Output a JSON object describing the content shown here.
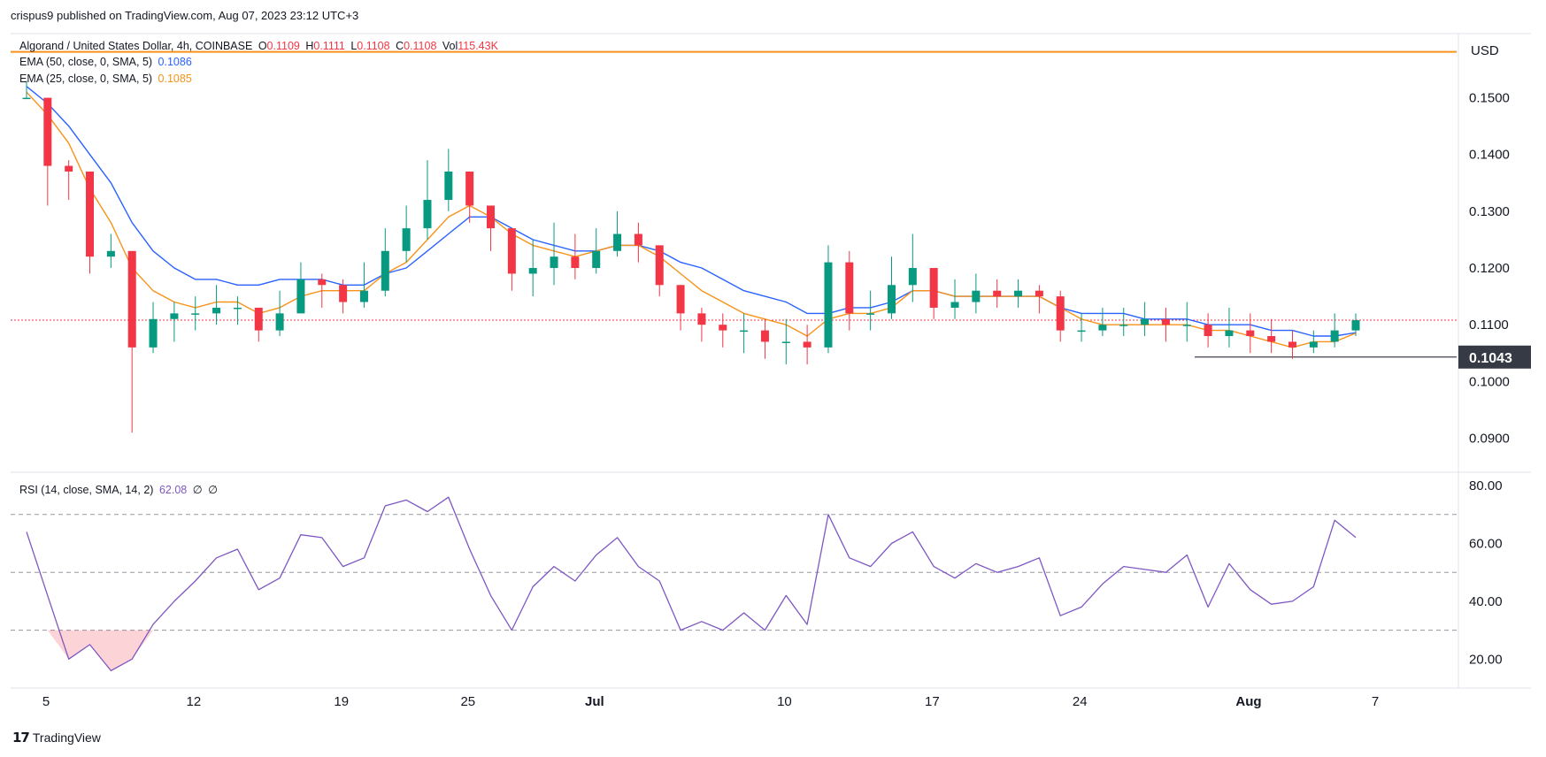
{
  "header": {
    "publisher_line": "crispus9 published on TradingView.com, Aug 07, 2023 23:12 UTC+3"
  },
  "legend": {
    "symbol": "Algorand / United States Dollar, 4h, COINBASE",
    "o_label": "O",
    "o_value": "0.1109",
    "h_label": "H",
    "h_value": "0.1111",
    "l_label": "L",
    "l_value": "0.1108",
    "c_label": "C",
    "c_value": "0.1108",
    "vol_label": "Vol",
    "vol_value": "115.43K",
    "ema50_label": "EMA (50, close, 0, SMA, 5)",
    "ema50_value": "0.1086",
    "ema25_label": "EMA (25, close, 0, SMA, 5)",
    "ema25_value": "0.1085",
    "rsi_label": "RSI (14, close, SMA, 14, 2)",
    "rsi_value": "62.08",
    "rsi_extra1": "∅",
    "rsi_extra2": "∅"
  },
  "price_axis": {
    "currency": "USD",
    "ticks": [
      "0.1500",
      "0.1400",
      "0.1300",
      "0.1200",
      "0.1100",
      "0.1000",
      "0.0900"
    ],
    "marked_price": "0.1043"
  },
  "rsi_axis": {
    "ticks": [
      "80.00",
      "60.00",
      "40.00",
      "20.00"
    ]
  },
  "time_axis": {
    "ticks": [
      "5",
      "12",
      "19",
      "25",
      "Jul",
      "10",
      "17",
      "24",
      "Aug",
      "7"
    ]
  },
  "footer": {
    "brand": "TradingView"
  },
  "colors": {
    "up": "#089981",
    "down": "#f23645",
    "ema50": "#2962ff",
    "ema25": "#f7931a",
    "rsi": "#7e57c2",
    "resistance": "#f7931a",
    "last_price": "#f23645"
  },
  "chart_data": [
    {
      "type": "candlestick",
      "title": "Algorand / United States Dollar, 4h, COINBASE",
      "xlabel": "",
      "ylabel": "USD",
      "ylim": [
        0.084,
        0.161
      ],
      "x": [
        "Jun 5",
        "Jun 6",
        "Jun 7",
        "Jun 8",
        "Jun 9",
        "Jun 10",
        "Jun 11",
        "Jun 12",
        "Jun 13",
        "Jun 14",
        "Jun 15",
        "Jun 16",
        "Jun 17",
        "Jun 18",
        "Jun 19",
        "Jun 20",
        "Jun 21",
        "Jun 22",
        "Jun 23",
        "Jun 24",
        "Jun 25",
        "Jun 26",
        "Jun 27",
        "Jun 28",
        "Jun 29",
        "Jun 30",
        "Jul 1",
        "Jul 2",
        "Jul 3",
        "Jul 4",
        "Jul 5",
        "Jul 6",
        "Jul 7",
        "Jul 8",
        "Jul 9",
        "Jul 10",
        "Jul 11",
        "Jul 12",
        "Jul 13",
        "Jul 14",
        "Jul 15",
        "Jul 16",
        "Jul 17",
        "Jul 18",
        "Jul 19",
        "Jul 20",
        "Jul 21",
        "Jul 22",
        "Jul 23",
        "Jul 24",
        "Jul 25",
        "Jul 26",
        "Jul 27",
        "Jul 28",
        "Jul 29",
        "Jul 30",
        "Jul 31",
        "Aug 1",
        "Aug 2",
        "Aug 3",
        "Aug 4",
        "Aug 5",
        "Aug 6",
        "Aug 7"
      ],
      "close": [
        0.15,
        0.138,
        0.137,
        0.122,
        0.123,
        0.106,
        0.111,
        0.112,
        0.112,
        0.113,
        0.113,
        0.109,
        0.112,
        0.118,
        0.117,
        0.114,
        0.116,
        0.123,
        0.127,
        0.132,
        0.137,
        0.131,
        0.127,
        0.119,
        0.12,
        0.122,
        0.12,
        0.123,
        0.126,
        0.124,
        0.117,
        0.112,
        0.11,
        0.109,
        0.109,
        0.107,
        0.107,
        0.106,
        0.121,
        0.112,
        0.112,
        0.117,
        0.12,
        0.113,
        0.114,
        0.116,
        0.115,
        0.116,
        0.115,
        0.109,
        0.109,
        0.11,
        0.11,
        0.111,
        0.11,
        0.11,
        0.108,
        0.109,
        0.108,
        0.107,
        0.106,
        0.107,
        0.109,
        0.1108
      ],
      "high": [
        0.153,
        0.14,
        0.139,
        0.127,
        0.126,
        0.112,
        0.114,
        0.114,
        0.115,
        0.117,
        0.115,
        0.113,
        0.116,
        0.121,
        0.119,
        0.118,
        0.121,
        0.127,
        0.131,
        0.139,
        0.141,
        0.137,
        0.131,
        0.125,
        0.125,
        0.128,
        0.126,
        0.127,
        0.13,
        0.128,
        0.124,
        0.117,
        0.113,
        0.112,
        0.112,
        0.111,
        0.111,
        0.11,
        0.124,
        0.123,
        0.116,
        0.122,
        0.126,
        0.119,
        0.118,
        0.119,
        0.118,
        0.118,
        0.117,
        0.116,
        0.112,
        0.113,
        0.113,
        0.114,
        0.113,
        0.114,
        0.112,
        0.113,
        0.112,
        0.111,
        0.109,
        0.109,
        0.112,
        0.112
      ],
      "low": [
        0.15,
        0.131,
        0.132,
        0.119,
        0.12,
        0.091,
        0.105,
        0.107,
        0.109,
        0.11,
        0.11,
        0.107,
        0.108,
        0.112,
        0.113,
        0.112,
        0.113,
        0.115,
        0.121,
        0.125,
        0.13,
        0.128,
        0.123,
        0.116,
        0.115,
        0.117,
        0.118,
        0.119,
        0.122,
        0.121,
        0.115,
        0.109,
        0.107,
        0.106,
        0.105,
        0.104,
        0.103,
        0.103,
        0.105,
        0.109,
        0.109,
        0.111,
        0.114,
        0.111,
        0.111,
        0.112,
        0.113,
        0.113,
        0.112,
        0.107,
        0.107,
        0.108,
        0.108,
        0.108,
        0.107,
        0.107,
        0.106,
        0.106,
        0.105,
        0.105,
        0.104,
        0.105,
        0.106,
        0.108
      ],
      "ema50": [
        0.152,
        0.149,
        0.145,
        0.14,
        0.135,
        0.128,
        0.123,
        0.12,
        0.118,
        0.118,
        0.117,
        0.117,
        0.118,
        0.118,
        0.118,
        0.117,
        0.117,
        0.119,
        0.12,
        0.123,
        0.126,
        0.129,
        0.129,
        0.127,
        0.125,
        0.124,
        0.123,
        0.123,
        0.124,
        0.124,
        0.123,
        0.121,
        0.12,
        0.118,
        0.116,
        0.115,
        0.114,
        0.112,
        0.112,
        0.113,
        0.113,
        0.114,
        0.116,
        0.116,
        0.115,
        0.115,
        0.115,
        0.115,
        0.115,
        0.113,
        0.112,
        0.112,
        0.112,
        0.111,
        0.111,
        0.111,
        0.11,
        0.11,
        0.11,
        0.109,
        0.109,
        0.108,
        0.108,
        0.1086
      ],
      "ema25": [
        0.151,
        0.147,
        0.142,
        0.134,
        0.128,
        0.12,
        0.116,
        0.114,
        0.113,
        0.114,
        0.114,
        0.112,
        0.113,
        0.115,
        0.116,
        0.116,
        0.116,
        0.119,
        0.121,
        0.125,
        0.129,
        0.131,
        0.129,
        0.126,
        0.124,
        0.123,
        0.122,
        0.123,
        0.124,
        0.124,
        0.122,
        0.119,
        0.116,
        0.114,
        0.112,
        0.111,
        0.11,
        0.108,
        0.111,
        0.112,
        0.112,
        0.113,
        0.116,
        0.116,
        0.115,
        0.115,
        0.115,
        0.115,
        0.115,
        0.113,
        0.111,
        0.11,
        0.11,
        0.11,
        0.11,
        0.11,
        0.109,
        0.109,
        0.108,
        0.107,
        0.106,
        0.107,
        0.107,
        0.1085
      ],
      "horizontal_lines": [
        {
          "name": "resistance",
          "value": 0.1581
        },
        {
          "name": "last-price",
          "value": 0.1108
        },
        {
          "name": "support",
          "value": 0.1043
        }
      ]
    },
    {
      "type": "line",
      "title": "RSI (14, close, SMA, 14, 2)",
      "ylim": [
        10,
        84
      ],
      "bands": [
        30,
        50,
        70
      ],
      "x": [
        "Jun 5",
        "Jun 6",
        "Jun 7",
        "Jun 8",
        "Jun 9",
        "Jun 10",
        "Jun 11",
        "Jun 12",
        "Jun 13",
        "Jun 14",
        "Jun 15",
        "Jun 16",
        "Jun 17",
        "Jun 18",
        "Jun 19",
        "Jun 20",
        "Jun 21",
        "Jun 22",
        "Jun 23",
        "Jun 24",
        "Jun 25",
        "Jun 26",
        "Jun 27",
        "Jun 28",
        "Jun 29",
        "Jun 30",
        "Jul 1",
        "Jul 2",
        "Jul 3",
        "Jul 4",
        "Jul 5",
        "Jul 6",
        "Jul 7",
        "Jul 8",
        "Jul 9",
        "Jul 10",
        "Jul 11",
        "Jul 12",
        "Jul 13",
        "Jul 14",
        "Jul 15",
        "Jul 16",
        "Jul 17",
        "Jul 18",
        "Jul 19",
        "Jul 20",
        "Jul 21",
        "Jul 22",
        "Jul 23",
        "Jul 24",
        "Jul 25",
        "Jul 26",
        "Jul 27",
        "Jul 28",
        "Jul 29",
        "Jul 30",
        "Jul 31",
        "Aug 1",
        "Aug 2",
        "Aug 3",
        "Aug 4",
        "Aug 5",
        "Aug 6",
        "Aug 7"
      ],
      "values": [
        64,
        42,
        20,
        25,
        16,
        20,
        32,
        40,
        47,
        55,
        58,
        44,
        48,
        63,
        62,
        52,
        55,
        73,
        75,
        71,
        76,
        58,
        42,
        30,
        45,
        52,
        47,
        56,
        62,
        52,
        47,
        30,
        33,
        30,
        36,
        30,
        42,
        32,
        70,
        55,
        52,
        60,
        64,
        52,
        48,
        53,
        50,
        52,
        55,
        35,
        38,
        46,
        52,
        51,
        50,
        56,
        38,
        53,
        44,
        39,
        40,
        45,
        68,
        62.08
      ]
    }
  ]
}
